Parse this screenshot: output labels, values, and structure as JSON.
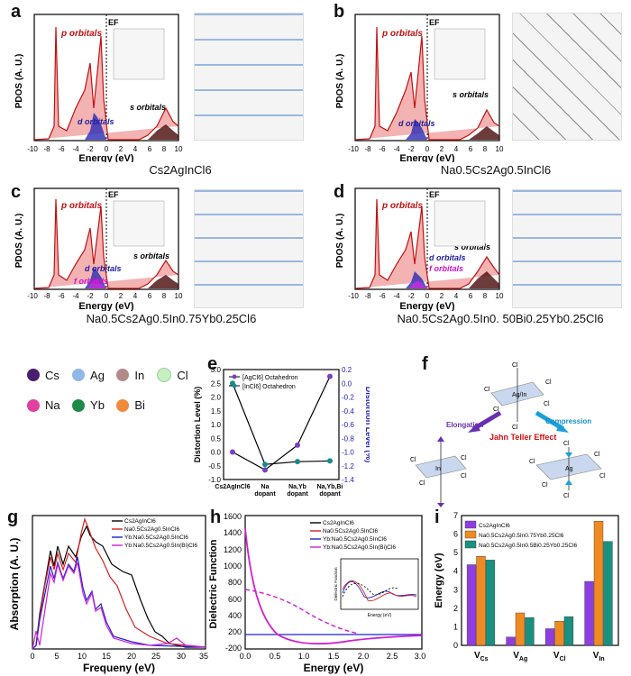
{
  "figure": {
    "panel_labels": [
      "a",
      "b",
      "c",
      "d",
      "e",
      "f",
      "g",
      "h",
      "i"
    ],
    "pdos_panels": [
      {
        "label": "a",
        "caption": "Cs2AgInCl6",
        "ylabel": "PDOS (A. U.)",
        "xlabel": "Energy (eV)",
        "xticks": [
          "-10",
          "-8",
          "-6",
          "-4",
          "-2",
          "0",
          "2",
          "4",
          "6",
          "8",
          "10"
        ],
        "annotations": [
          "p orbitals",
          "d orbitals",
          "s orbitals",
          "EF"
        ]
      },
      {
        "label": "b",
        "caption": "Na0.5Cs2Ag0.5InCl6",
        "ylabel": "PDOS (A. U.)",
        "xlabel": "Energy (eV)",
        "xticks": [
          "-10",
          "-8",
          "-6",
          "-4",
          "-2",
          "0",
          "2",
          "4",
          "6",
          "8",
          "10"
        ],
        "annotations": [
          "p orbitals",
          "d orbitals",
          "s orbitals",
          "EF"
        ]
      },
      {
        "label": "c",
        "caption": "Na0.5Cs2Ag0.5In0.75Yb0.25Cl6",
        "ylabel": "PDOS (A. U.)",
        "xlabel": "Energy (eV)",
        "xticks": [
          "-10",
          "-8",
          "-6",
          "-4",
          "-2",
          "0",
          "2",
          "4",
          "6",
          "8",
          "10"
        ],
        "annotations": [
          "p orbitals",
          "d orbitals",
          "f orbitals",
          "s orbitals",
          "EF"
        ]
      },
      {
        "label": "d",
        "caption": "Na0.5Cs2Ag0.5In0. 50Bi0.25Yb0.25Cl6",
        "ylabel": "PDOS (A. U.)",
        "xlabel": "Energy (eV)",
        "xticks": [
          "-10",
          "-8",
          "-6",
          "-4",
          "-2",
          "0",
          "2",
          "4",
          "6",
          "8",
          "10"
        ],
        "annotations": [
          "p orbitals",
          "d orbitals",
          "f orbitals",
          "s orbitals",
          "EF"
        ]
      }
    ],
    "element_legend": [
      {
        "name": "Cs",
        "color": "#4b1f6f"
      },
      {
        "name": "Ag",
        "color": "#8fb8e8"
      },
      {
        "name": "In",
        "color": "#b38a8a"
      },
      {
        "name": "Cl",
        "color": "#c7f0c0"
      },
      {
        "name": "Na",
        "color": "#e040a0"
      },
      {
        "name": "Yb",
        "color": "#1e8a4a"
      },
      {
        "name": "Bi",
        "color": "#f08a3c"
      }
    ],
    "panel_f": {
      "labels": [
        "Cl",
        "Ag/In",
        "Elongation",
        "Compression",
        "Jahn Teller Effect",
        "In",
        "Ag"
      ]
    }
  },
  "chart_data": [
    {
      "id": "e",
      "type": "line",
      "categories": [
        "Cs2AgInCl6",
        "Na dopant",
        "Na,Yb dopant",
        "Na,Yb,Bi dopant"
      ],
      "ylabel": "Distortion Level (%)",
      "ylabel_right": "Distortion Level (%)",
      "ylim": [
        -1.0,
        3.0
      ],
      "yticks": [
        "-1.0",
        "-0.5",
        "0.0",
        "0.5",
        "1.0",
        "1.5",
        "2.0",
        "2.5",
        "3.0"
      ],
      "ylim_right": [
        -1.4,
        0.2
      ],
      "yticks_right": [
        "0.2",
        "0.0",
        "-0.2",
        "-0.4",
        "-0.6",
        "-0.8",
        "-1.0",
        "-1.2",
        "-1.4"
      ],
      "series": [
        {
          "name": "[AgCl6] Octahedron",
          "axis": "left",
          "values": [
            0.0,
            -0.65,
            0.25,
            2.75
          ],
          "color": "#7a3fc4"
        },
        {
          "name": "[InCl6] Octahedron",
          "axis": "right",
          "values": [
            0.0,
            -1.18,
            -1.14,
            -1.13
          ],
          "color": "#1a8a8a"
        }
      ],
      "legend": "top-left"
    },
    {
      "id": "g",
      "type": "line",
      "xlabel": "Frequeny (eV)",
      "ylabel": "Absorption  (A. U.)",
      "xlim": [
        0,
        35
      ],
      "xticks": [
        "0",
        "5",
        "10",
        "15",
        "20",
        "25",
        "30",
        "35"
      ],
      "series": [
        {
          "name": "Cs2AgInCl6",
          "color": "#000000"
        },
        {
          "name": "Na0.5Cs2Ag0.5InCl6",
          "color": "#d62020"
        },
        {
          "name": "Yb:Na0.5Cs2Ag0.5InCl6",
          "color": "#2020d0"
        },
        {
          "name": "Yb:Na0.5Cs2Ag0.5In(Bi)Cl6",
          "color": "#d020d0"
        }
      ],
      "legend": "top-right"
    },
    {
      "id": "h",
      "type": "line",
      "xlabel": "Energy (eV)",
      "ylabel": "Dielectric Function",
      "xlim": [
        0.0,
        3.0
      ],
      "xticks": [
        "0.0",
        "0.5",
        "1.0",
        "1.5",
        "2.0",
        "2.5",
        "3.0"
      ],
      "ylim": [
        -200,
        1600
      ],
      "yticks": [
        "-200",
        "0",
        "200",
        "400",
        "600",
        "800",
        "1000",
        "1200",
        "1400",
        "1600"
      ],
      "series": [
        {
          "name": "Cs2AgInCl6",
          "color": "#000000"
        },
        {
          "name": "Na0.5Cs2Ag0.5InCl6",
          "color": "#d62020"
        },
        {
          "name": "Yb:Na0.5Cs2Ag0.5InCl6",
          "color": "#2020d0"
        },
        {
          "name": "Yb:Na0.5Cs2Ag0.5In(Bi)Cl6",
          "color": "#d020d0"
        }
      ],
      "inset": {
        "xlabel": "Energy (eV)",
        "ylabel": "Dielectric Function",
        "xticks": [
          "0",
          "5",
          "10",
          "15",
          "20"
        ]
      },
      "legend": "top-right"
    },
    {
      "id": "i",
      "type": "bar",
      "categories": [
        "VCs",
        "VAg",
        "VCl",
        "VIn"
      ],
      "ylabel": "Energy (eV)",
      "ylim": [
        0,
        7
      ],
      "yticks": [
        "0",
        "1",
        "2",
        "3",
        "4",
        "5",
        "6",
        "7"
      ],
      "series": [
        {
          "name": "Cs2AgInCl6",
          "color": "#8e3ee0",
          "values": [
            4.35,
            0.45,
            0.9,
            3.45
          ]
        },
        {
          "name": "Na0.5Cs2Ag0.5In0.75Yb0.25Cl6",
          "color": "#f08a20",
          "values": [
            4.8,
            1.75,
            1.3,
            6.7
          ]
        },
        {
          "name": "Na0.5Cs2Ag0.5In0.5Bi0.25Yb0.25Cl6",
          "color": "#1a9080",
          "values": [
            4.6,
            1.5,
            1.55,
            5.6
          ]
        }
      ],
      "legend": "top-left"
    }
  ]
}
